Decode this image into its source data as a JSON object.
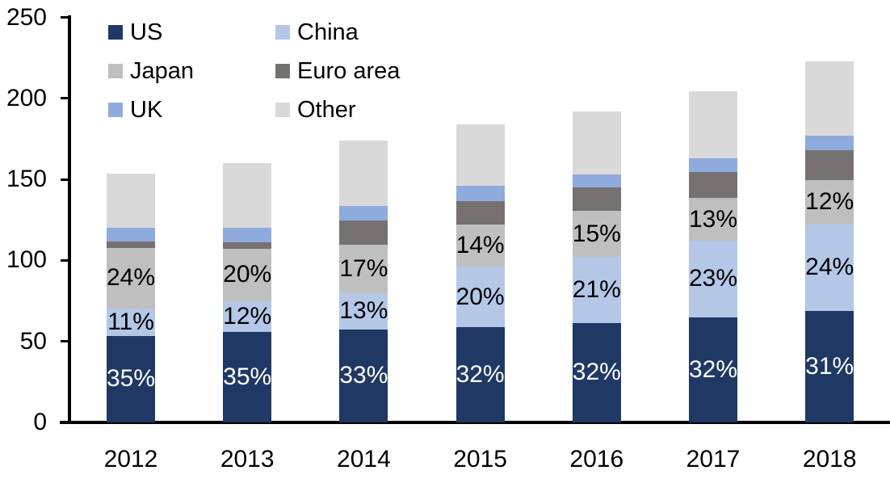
{
  "chart_data": {
    "type": "bar",
    "stacked": true,
    "title": "",
    "xlabel": "",
    "ylabel": "",
    "categories": [
      "2012",
      "2013",
      "2014",
      "2015",
      "2016",
      "2017",
      "2018"
    ],
    "totals": [
      153.5,
      160,
      174,
      184,
      192,
      204.5,
      223
    ],
    "series": [
      {
        "name": "US",
        "color": "#1f3864",
        "values": [
          53.5,
          56,
          57.5,
          59,
          61.5,
          65,
          69
        ],
        "labels": [
          "35%",
          "35%",
          "33%",
          "32%",
          "32%",
          "32%",
          "31%"
        ],
        "label_color": "#ffffff"
      },
      {
        "name": "China",
        "color": "#b4c7e7",
        "values": [
          17,
          19,
          22.5,
          37,
          40.5,
          47,
          53.5
        ],
        "labels": [
          "11%",
          "12%",
          "13%",
          "20%",
          "21%",
          "23%",
          "24%"
        ],
        "label_color": "#000000"
      },
      {
        "name": "Japan",
        "color": "#bfbfbf",
        "values": [
          37,
          32,
          29.5,
          26,
          28.5,
          26.5,
          27
        ],
        "labels": [
          "24%",
          "20%",
          "17%",
          "14%",
          "15%",
          "13%",
          "12%"
        ],
        "label_color": "#000000"
      },
      {
        "name": "Euro area",
        "color": "#767171",
        "values": [
          4,
          4,
          15,
          14.5,
          14.5,
          16,
          18.5
        ],
        "labels": null,
        "label_color": null
      },
      {
        "name": "UK",
        "color": "#8faadc",
        "values": [
          8.5,
          9,
          9,
          9.5,
          8,
          8.5,
          9
        ],
        "labels": null,
        "label_color": null
      },
      {
        "name": "Other",
        "color": "#d9d9d9",
        "values": [
          33.5,
          40,
          40.5,
          38,
          39,
          41.5,
          46
        ],
        "labels": null,
        "label_color": null
      }
    ],
    "y_axis": {
      "min": 0,
      "max": 250,
      "tick_step": 50,
      "ticks": [
        0,
        50,
        100,
        150,
        200,
        250
      ]
    },
    "legend": {
      "position": "top-left",
      "columns": 2,
      "order": [
        "US",
        "China",
        "Japan",
        "Euro area",
        "UK",
        "Other"
      ]
    },
    "grid": false,
    "axis_color": "#000000",
    "background_color": "#ffffff"
  }
}
